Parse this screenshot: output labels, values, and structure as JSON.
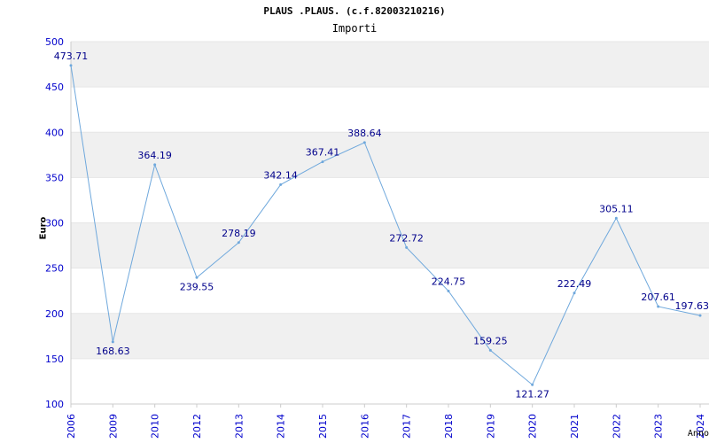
{
  "title": "PLAUS .PLAUS. (c.f.82003210216)",
  "subtitle": "Importi",
  "colors": {
    "line": "#6fa8dc",
    "label": "#00008b",
    "tick": "#0000cc",
    "band": "#f0f0f0",
    "axis": "#cccccc"
  },
  "chart_data": {
    "type": "line",
    "title": "PLAUS .PLAUS. (c.f.82003210216)",
    "subtitle": "Importi",
    "xlabel": "Anno",
    "ylabel": "Euro",
    "ylim": [
      100,
      500
    ],
    "yticks": [
      100,
      150,
      200,
      250,
      300,
      350,
      400,
      450,
      500
    ],
    "grid": "horizontal alternating bands",
    "categories": [
      "2006",
      "2009",
      "2010",
      "2012",
      "2013",
      "2014",
      "2015",
      "2016",
      "2017",
      "2018",
      "2019",
      "2020",
      "2021",
      "2022",
      "2023",
      "2024"
    ],
    "series": [
      {
        "values": [
          473.71,
          168.63,
          364.19,
          239.55,
          278.19,
          342.14,
          367.41,
          388.64,
          272.72,
          224.75,
          159.25,
          121.27,
          222.49,
          305.11,
          207.61,
          197.63
        ],
        "labels": [
          "473.71",
          "168.63",
          "364.19",
          "239.55",
          "278.19",
          "342.14",
          "367.41",
          "388.64",
          "272.72",
          "224.75",
          "159.25",
          "121.27",
          "222.49",
          "305.11",
          "207.61",
          "197.63"
        ]
      }
    ]
  }
}
